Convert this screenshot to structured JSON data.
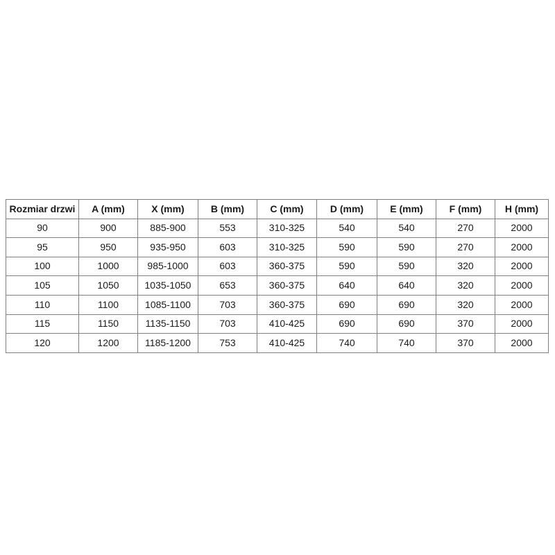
{
  "page": {
    "background_color": "#ffffff"
  },
  "table": {
    "name": "door-size-specification-table",
    "border_color": "#808080",
    "text_color": "#1a1a1a",
    "headers": [
      "Rozmiar drzwi",
      "A (mm)",
      "X (mm)",
      "B (mm)",
      "C (mm)",
      "D (mm)",
      "E (mm)",
      "F (mm)",
      "H (mm)"
    ],
    "rows": [
      [
        "90",
        "900",
        "885-900",
        "553",
        "310-325",
        "540",
        "540",
        "270",
        "2000"
      ],
      [
        "95",
        "950",
        "935-950",
        "603",
        "310-325",
        "590",
        "590",
        "270",
        "2000"
      ],
      [
        "100",
        "1000",
        "985-1000",
        "603",
        "360-375",
        "590",
        "590",
        "320",
        "2000"
      ],
      [
        "105",
        "1050",
        "1035-1050",
        "653",
        "360-375",
        "640",
        "640",
        "320",
        "2000"
      ],
      [
        "110",
        "1100",
        "1085-1100",
        "703",
        "360-375",
        "690",
        "690",
        "320",
        "2000"
      ],
      [
        "115",
        "1150",
        "1135-1150",
        "703",
        "410-425",
        "690",
        "690",
        "370",
        "2000"
      ],
      [
        "120",
        "1200",
        "1185-1200",
        "753",
        "410-425",
        "740",
        "740",
        "370",
        "2000"
      ]
    ]
  }
}
